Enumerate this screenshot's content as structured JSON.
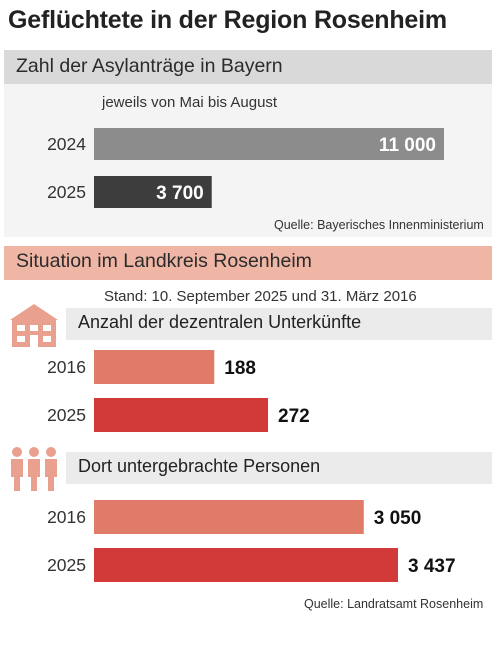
{
  "title": "Geflüchtete in der Region Rosenheim",
  "section1": {
    "heading": "Zahl der Asylanträge in Bayern",
    "subtitle": "jeweils von Mai bis August",
    "source": "Quelle: Bayerisches Innenministerium"
  },
  "section2": {
    "heading": "Situation im Landkreis Rosenheim",
    "stand": "Stand: 10. September 2025 und 31. März 2016",
    "source": "Quelle: Landratsamt Rosenheim"
  },
  "icons": [
    "house-icon",
    "people-icon"
  ],
  "colors": {
    "bar_2024": "#8c8c8c",
    "bar_2025_dark": "#3d3d3d",
    "bar_2016_light_red": "#e07b6a",
    "bar_2025_red": "#d13a38",
    "band_gray": "#d9d9d9",
    "band_pink": "#f0b6a5"
  },
  "chart_data": [
    {
      "type": "bar",
      "orientation": "horizontal",
      "title": "Zahl der Asylanträge in Bayern",
      "subtitle": "jeweils von Mai bis August",
      "categories": [
        "2024",
        "2025"
      ],
      "values": [
        11000,
        3700
      ],
      "labels": [
        "11 000",
        "3 700"
      ]
    },
    {
      "type": "bar",
      "orientation": "horizontal",
      "title": "Anzahl der dezentralen Unterkünfte",
      "categories": [
        "2016",
        "2025"
      ],
      "values": [
        188,
        272
      ],
      "labels": [
        "188",
        "272"
      ]
    },
    {
      "type": "bar",
      "orientation": "horizontal",
      "title": "Dort untergebrachte Personen",
      "categories": [
        "2016",
        "2025"
      ],
      "values": [
        3050,
        3437
      ],
      "labels": [
        "3 050",
        "3 437"
      ]
    }
  ]
}
